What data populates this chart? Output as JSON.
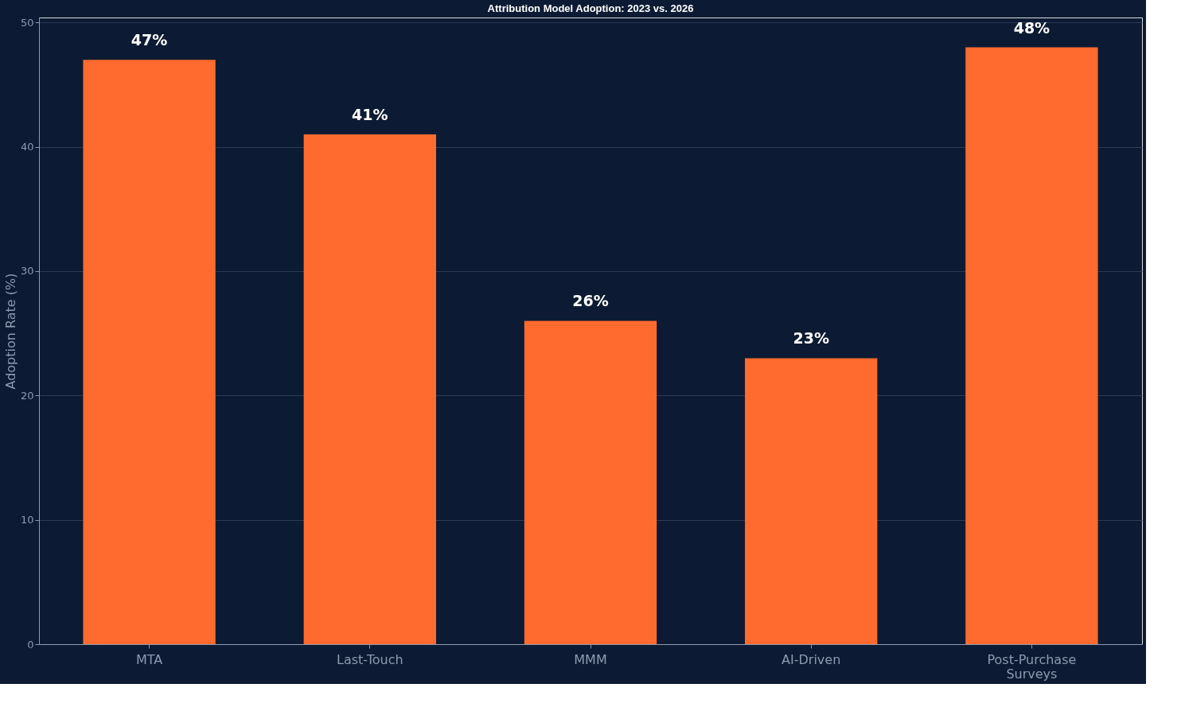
{
  "chart_data": {
    "type": "bar",
    "title": "Attribution Model Adoption: 2023 vs. 2026",
    "ylabel": "Adoption Rate (%)",
    "categories": [
      "MTA",
      "Last-Touch",
      "MMM",
      "AI-Driven",
      "Post-Purchase Surveys"
    ],
    "values": [
      47,
      41,
      26,
      23,
      48
    ],
    "value_labels": [
      "47%",
      "41%",
      "26%",
      "23%",
      "48%"
    ],
    "color": "#ff6b2e",
    "ylim": [
      0,
      50.4
    ],
    "yticks": [
      0,
      10,
      20,
      30,
      40,
      50
    ],
    "grid": "y"
  }
}
